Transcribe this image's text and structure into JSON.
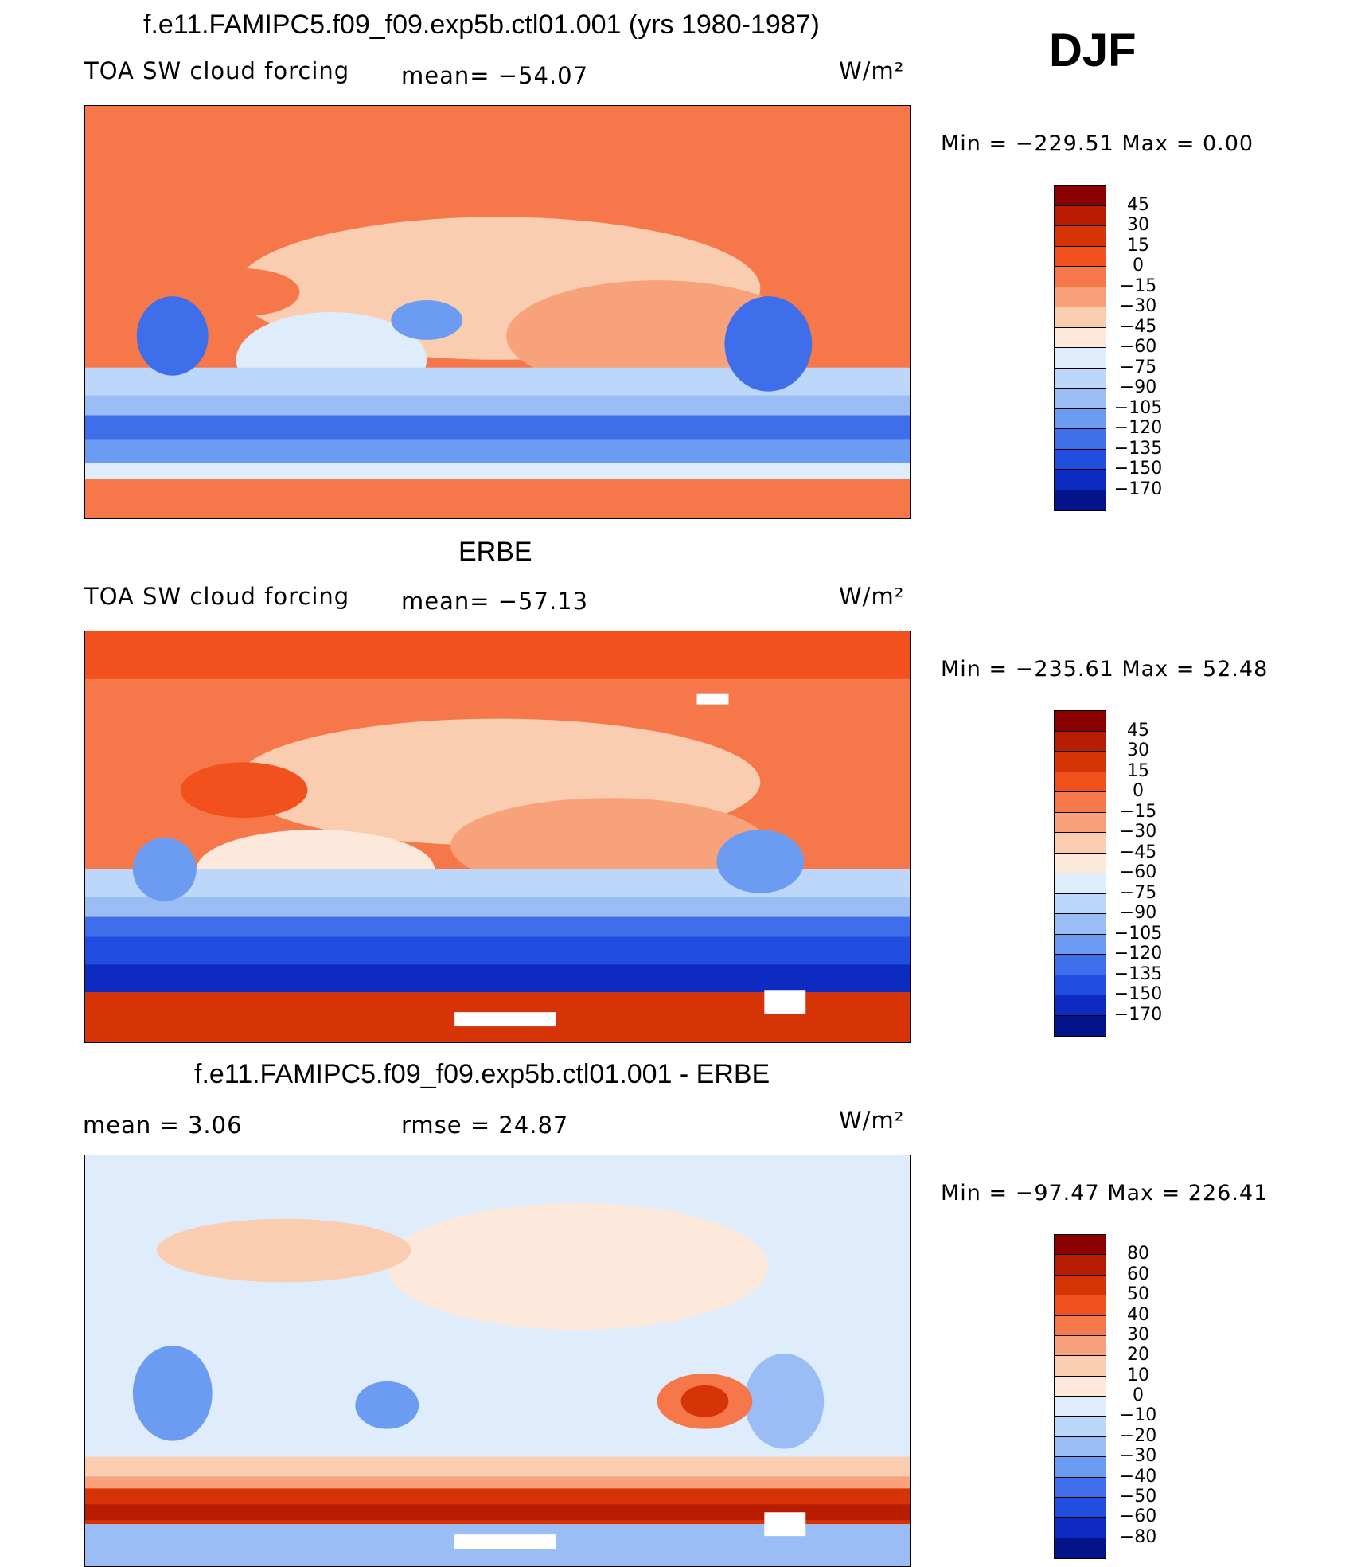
{
  "season": "DJF",
  "panels": [
    {
      "id": "model",
      "title": "f.e11.FAMIPC5.f09_f09.exp5b.ctl01.001 (yrs 1980-1987)",
      "variable": "TOA SW cloud forcing",
      "stat1": "mean= −54.07",
      "stat2": "",
      "units": "W/m²",
      "minmax": "Min  =  −229.51  Max  =     0.00",
      "levels": [
        "45",
        "30",
        "15",
        "0",
        "−15",
        "−30",
        "−45",
        "−60",
        "−75",
        "−90",
        "−105",
        "−120",
        "−135",
        "−150",
        "−170"
      ],
      "colors": [
        "#8b0000",
        "#b81d02",
        "#d63407",
        "#f2501c",
        "#f6784a",
        "#f7a27a",
        "#fbcdb0",
        "#fde9dc",
        "#deecfb",
        "#bcd7fa",
        "#9bbdf5",
        "#6b9cf2",
        "#3e6ee9",
        "#214de0",
        "#0d2bc0",
        "#03138a"
      ]
    },
    {
      "id": "obs",
      "title": "ERBE",
      "variable": "TOA SW cloud forcing",
      "stat1": "mean= −57.13",
      "stat2": "",
      "units": "W/m²",
      "minmax": "Min  =  −235.61  Max  =   52.48",
      "levels": [
        "45",
        "30",
        "15",
        "0",
        "−15",
        "−30",
        "−45",
        "−60",
        "−75",
        "−90",
        "−105",
        "−120",
        "−135",
        "−150",
        "−170"
      ],
      "colors": [
        "#8b0000",
        "#b81d02",
        "#d63407",
        "#f2501c",
        "#f6784a",
        "#f7a27a",
        "#fbcdb0",
        "#fde9dc",
        "#deecfb",
        "#bcd7fa",
        "#9bbdf5",
        "#6b9cf2",
        "#3e6ee9",
        "#214de0",
        "#0d2bc0",
        "#03138a"
      ]
    },
    {
      "id": "diff",
      "title": "f.e11.FAMIPC5.f09_f09.exp5b.ctl01.001 - ERBE",
      "variable": "mean  =     3.06",
      "stat1": "rmse  =    24.87",
      "stat2": "",
      "units": "W/m²",
      "minmax": "Min  =  −97.47  Max  =  226.41",
      "levels": [
        "80",
        "60",
        "50",
        "40",
        "30",
        "20",
        "10",
        "0",
        "−10",
        "−20",
        "−30",
        "−40",
        "−50",
        "−60",
        "−80"
      ],
      "colors": [
        "#8b0000",
        "#b81d02",
        "#d63407",
        "#f2501c",
        "#f6784a",
        "#f7a27a",
        "#fbcdb0",
        "#fde9dc",
        "#deecfb",
        "#bcd7fa",
        "#9bbdf5",
        "#6b9cf2",
        "#3e6ee9",
        "#214de0",
        "#0d2bc0",
        "#03138a"
      ]
    }
  ]
}
